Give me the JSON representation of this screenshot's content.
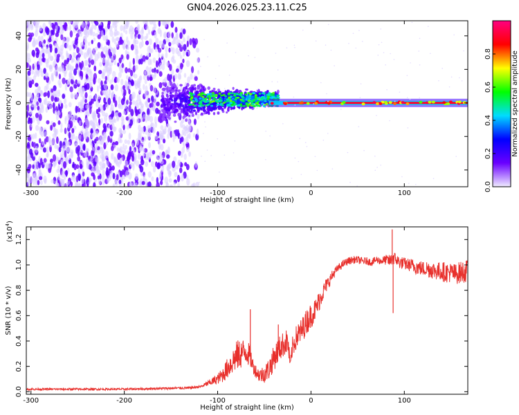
{
  "title": "GN04.2026.025.23.11.C25",
  "chart_data": [
    {
      "type": "heatmap",
      "name": "spectrogram",
      "xlabel": "Height of straight line (km)",
      "ylabel": "Frequency (Hz)",
      "xlim": [
        -305,
        168
      ],
      "ylim": [
        -50,
        49
      ],
      "xticks": [
        -300,
        -200,
        -100,
        0,
        100
      ],
      "yticks": [
        -40,
        -20,
        0,
        20,
        40
      ],
      "colorbar": {
        "label": "Normalized spectral amplitude",
        "ticks": [
          "0.0",
          "0.2",
          "0.4",
          "0.6",
          "0.8"
        ],
        "tick_values": [
          0.0,
          0.2,
          0.4,
          0.6,
          0.8
        ],
        "range": [
          0,
          1
        ],
        "colormap": [
          "#f0ecff",
          "#6a00ff",
          "#0000ff",
          "#00dcff",
          "#00ff00",
          "#ffff00",
          "#ff0000",
          "#ff0080"
        ]
      },
      "features": {
        "noise_region_x": [
          -305,
          -120
        ],
        "signal_onset_x": -150,
        "tone_frequency_hz": 0,
        "tone_region_x": [
          -30,
          168
        ]
      }
    },
    {
      "type": "line",
      "name": "snr",
      "xlabel": "Height of straight line (km)",
      "ylabel": "SNR (10 * v/v)",
      "y_multiplier": "(x10",
      "y_multiplier_exp": "4",
      "multiplier_suffix": ")",
      "xlim": [
        -305,
        168
      ],
      "ylim": [
        -0.02,
        1.3
      ],
      "xticks": [
        -300,
        -200,
        -100,
        0,
        100
      ],
      "yticks": [
        "0.0",
        "0.2",
        "0.4",
        "0.6",
        "0.8",
        "1.0",
        "1.2"
      ],
      "ytick_values": [
        0.0,
        0.2,
        0.4,
        0.6,
        0.8,
        1.0,
        1.2
      ],
      "color": "#e8302c",
      "series": [
        {
          "name": "SNR",
          "x": [
            -305,
            -200,
            -130,
            -118,
            -100,
            -95,
            -90,
            -85,
            -80,
            -75,
            -70,
            -65,
            -62,
            -58,
            -55,
            -50,
            -45,
            -40,
            -35,
            -30,
            -25,
            -22,
            -20,
            -15,
            -10,
            -5,
            0,
            5,
            10,
            15,
            20,
            25,
            30,
            35,
            40,
            45,
            50,
            55,
            60,
            65,
            70,
            75,
            80,
            85,
            88,
            90,
            95,
            100,
            105,
            110,
            115,
            120,
            125,
            130,
            135,
            140,
            145,
            150,
            155,
            160,
            165,
            168
          ],
          "y": [
            0.02,
            0.02,
            0.03,
            0.04,
            0.1,
            0.13,
            0.18,
            0.23,
            0.28,
            0.3,
            0.32,
            0.28,
            0.2,
            0.15,
            0.13,
            0.14,
            0.18,
            0.26,
            0.33,
            0.37,
            0.4,
            0.2,
            0.35,
            0.44,
            0.48,
            0.55,
            0.6,
            0.65,
            0.74,
            0.82,
            0.88,
            0.94,
            0.98,
            1.01,
            1.03,
            1.04,
            1.04,
            1.03,
            1.03,
            1.02,
            1.04,
            1.03,
            1.04,
            1.03,
            1.06,
            1.05,
            1.02,
            1.01,
            1.0,
            0.99,
            0.98,
            0.97,
            0.97,
            0.96,
            0.95,
            0.95,
            0.94,
            0.94,
            0.93,
            0.94,
            0.95,
            0.95
          ],
          "noise_amplitude": [
            0.008,
            0.008,
            0.01,
            0.01,
            0.04,
            0.06,
            0.08,
            0.1,
            0.12,
            0.12,
            0.1,
            0.09,
            0.06,
            0.05,
            0.06,
            0.07,
            0.09,
            0.1,
            0.1,
            0.1,
            0.1,
            0.05,
            0.08,
            0.1,
            0.1,
            0.1,
            0.1,
            0.09,
            0.08,
            0.06,
            0.05,
            0.04,
            0.03,
            0.03,
            0.03,
            0.03,
            0.03,
            0.03,
            0.03,
            0.03,
            0.03,
            0.03,
            0.04,
            0.05,
            0.06,
            0.05,
            0.05,
            0.05,
            0.05,
            0.06,
            0.06,
            0.06,
            0.07,
            0.07,
            0.07,
            0.08,
            0.08,
            0.08,
            0.08,
            0.09,
            0.09,
            0.09
          ]
        }
      ],
      "annotations": [
        {
          "x": -65,
          "y": 0.65,
          "text": "spike"
        },
        {
          "x": -35,
          "y": 0.53,
          "text": "spike"
        },
        {
          "x": 87,
          "y": 1.28,
          "text": "spike"
        },
        {
          "x": 88,
          "y": 0.62,
          "text": "dip"
        }
      ]
    }
  ]
}
